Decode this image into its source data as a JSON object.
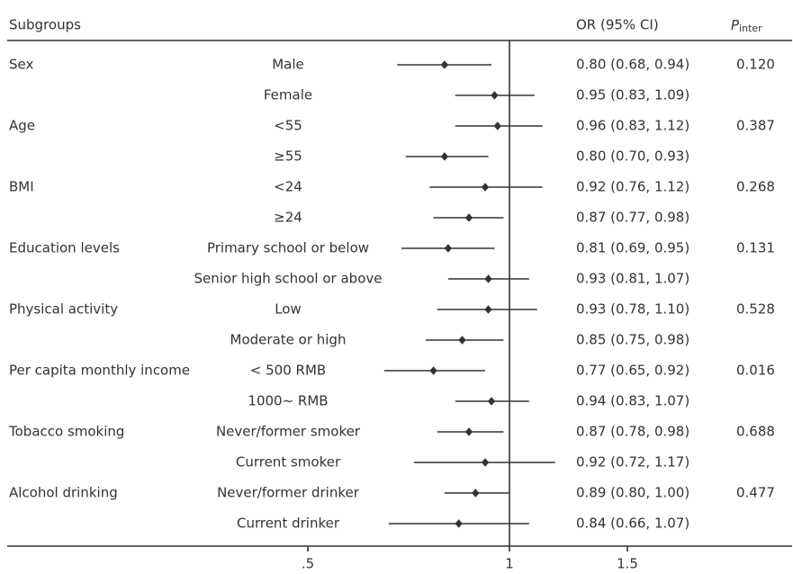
{
  "chart_data": {
    "type": "forest",
    "subgroups_header": "Subgroups",
    "estimate_header": "OR (95% CI)",
    "p_header": {
      "symbol": "P",
      "subscript": "inter"
    },
    "x_log_scale": true,
    "xlim": [
      0.5,
      1.5
    ],
    "xticks": [
      {
        "value": 0.5,
        "label": ".5"
      },
      1,
      1.5
    ],
    "reference_line": 1,
    "color": "#333333",
    "groups": [
      {
        "name": "Sex",
        "p_inter": "0.120",
        "subgroups": [
          "Male",
          "Female"
        ],
        "values": [
          0.8,
          0.95
        ],
        "lower": [
          0.68,
          0.83
        ],
        "upper": [
          0.94,
          1.09
        ],
        "value_labels": [
          "0.80 (0.68, 0.94)",
          "0.95 (0.83, 1.09)"
        ]
      },
      {
        "name": "Age",
        "p_inter": "0.387",
        "subgroups": [
          "<55",
          "≥55"
        ],
        "values": [
          0.96,
          0.8
        ],
        "lower": [
          0.83,
          0.7
        ],
        "upper": [
          1.12,
          0.93
        ],
        "value_labels": [
          "0.96 (0.83, 1.12)",
          "0.80 (0.70, 0.93)"
        ]
      },
      {
        "name": "BMI",
        "p_inter": "0.268",
        "subgroups": [
          "<24",
          "≥24"
        ],
        "values": [
          0.92,
          0.87
        ],
        "lower": [
          0.76,
          0.77
        ],
        "upper": [
          1.12,
          0.98
        ],
        "value_labels": [
          "0.92 (0.76, 1.12)",
          "0.87 (0.77, 0.98)"
        ]
      },
      {
        "name": "Education levels",
        "p_inter": "0.131",
        "subgroups": [
          "Primary school or below",
          "Senior high school or above"
        ],
        "values": [
          0.81,
          0.93
        ],
        "lower": [
          0.69,
          0.81
        ],
        "upper": [
          0.95,
          1.07
        ],
        "value_labels": [
          "0.81 (0.69, 0.95)",
          "0.93 (0.81, 1.07)"
        ]
      },
      {
        "name": "Physical activity",
        "p_inter": "0.528",
        "subgroups": [
          "Low",
          "Moderate or high"
        ],
        "values": [
          0.93,
          0.85
        ],
        "lower": [
          0.78,
          0.75
        ],
        "upper": [
          1.1,
          0.98
        ],
        "value_labels": [
          "0.93 (0.78, 1.10)",
          "0.85 (0.75, 0.98)"
        ]
      },
      {
        "name": "Per capita monthly income",
        "p_inter": "0.016",
        "subgroups": [
          "< 500 RMB",
          "1000~ RMB"
        ],
        "values": [
          0.77,
          0.94
        ],
        "lower": [
          0.65,
          0.83
        ],
        "upper": [
          0.92,
          1.07
        ],
        "value_labels": [
          "0.77 (0.65, 0.92)",
          "0.94 (0.83, 1.07)"
        ]
      },
      {
        "name": "Tobacco smoking",
        "p_inter": "0.688",
        "subgroups": [
          "Never/former smoker",
          "Current smoker"
        ],
        "values": [
          0.87,
          0.92
        ],
        "lower": [
          0.78,
          0.72
        ],
        "upper": [
          0.98,
          1.17
        ],
        "value_labels": [
          "0.87 (0.78, 0.98)",
          "0.92 (0.72, 1.17)"
        ]
      },
      {
        "name": "Alcohol drinking",
        "p_inter": "0.477",
        "subgroups": [
          "Never/former drinker",
          "Current drinker"
        ],
        "values": [
          0.89,
          0.84
        ],
        "lower": [
          0.8,
          0.66
        ],
        "upper": [
          1.0,
          1.07
        ],
        "value_labels": [
          "0.89 (0.80, 1.00)",
          "0.84 (0.66, 1.07)"
        ]
      }
    ]
  }
}
